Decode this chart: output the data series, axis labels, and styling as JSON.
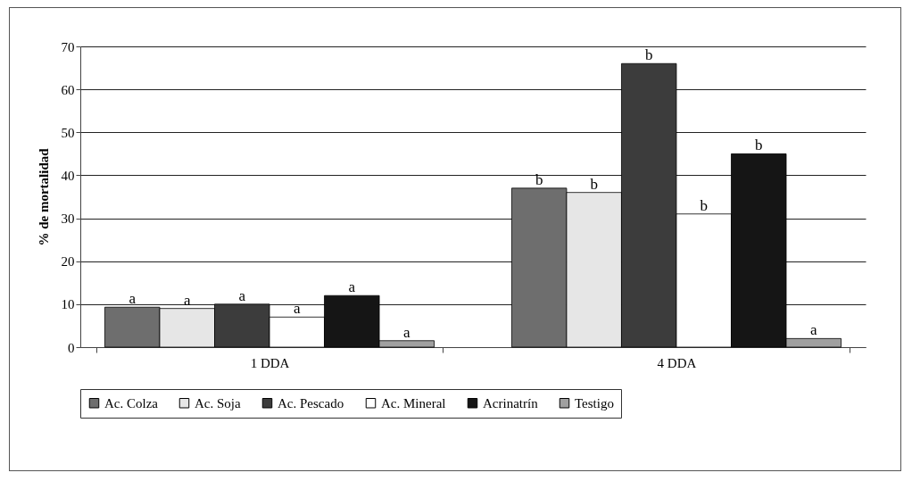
{
  "chart_data": {
    "type": "bar",
    "ylabel": "% de mortalidad",
    "categories": [
      "1 DDA",
      "4 DDA"
    ],
    "series": [
      {
        "name": "Ac. Colza",
        "color": "#6e6e6e",
        "values": [
          9.3,
          37
        ],
        "value_labels": [
          "a",
          "b"
        ]
      },
      {
        "name": "Ac. Soja",
        "color": "#e6e6e6",
        "values": [
          9,
          36
        ],
        "value_labels": [
          "a",
          "b"
        ]
      },
      {
        "name": "Ac. Pescado",
        "color": "#3c3c3c",
        "values": [
          10,
          66
        ],
        "value_labels": [
          "a",
          "b"
        ]
      },
      {
        "name": "Ac. Mineral",
        "color": "#ffffff",
        "values": [
          7,
          31
        ],
        "value_labels": [
          "a",
          "b"
        ]
      },
      {
        "name": "Acrinatrín",
        "color": "#151515",
        "values": [
          12,
          45
        ],
        "value_labels": [
          "a",
          "b"
        ]
      },
      {
        "name": "Testigo",
        "color": "#a0a0a0",
        "values": [
          1.5,
          2
        ],
        "value_labels": [
          "a",
          "a"
        ]
      }
    ],
    "ylim": [
      0,
      70
    ],
    "yticks": [
      0,
      10,
      20,
      30,
      40,
      50,
      60,
      70
    ],
    "grid": "y",
    "legend": "bottom"
  }
}
